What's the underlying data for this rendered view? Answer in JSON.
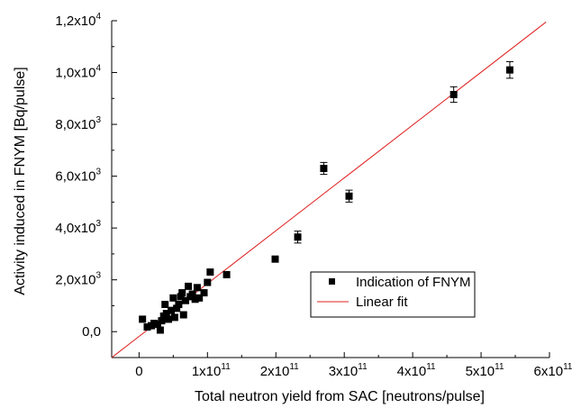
{
  "chart_data": {
    "type": "scatter",
    "xlabel": "Total neutron yield from SAC [neutrons/pulse]",
    "ylabel": "Activity induced in FNYM [Bq/pulse]",
    "xlim": [
      -40000000000.0,
      600000000000.0
    ],
    "ylim": [
      -1000,
      12000
    ],
    "x_ticks": [
      {
        "value": 0,
        "mantissa": "0",
        "exponent": ""
      },
      {
        "value": 100000000000.0,
        "mantissa": "1x10",
        "exponent": "11"
      },
      {
        "value": 200000000000.0,
        "mantissa": "2x10",
        "exponent": "11"
      },
      {
        "value": 300000000000.0,
        "mantissa": "3x10",
        "exponent": "11"
      },
      {
        "value": 400000000000.0,
        "mantissa": "4x10",
        "exponent": "11"
      },
      {
        "value": 500000000000.0,
        "mantissa": "5x10",
        "exponent": "11"
      },
      {
        "value": 600000000000.0,
        "mantissa": "6x10",
        "exponent": "11"
      }
    ],
    "y_ticks": [
      {
        "value": 0,
        "mantissa": "0,0",
        "exponent": ""
      },
      {
        "value": 2000,
        "mantissa": "2,0x10",
        "exponent": "3"
      },
      {
        "value": 4000,
        "mantissa": "4,0x10",
        "exponent": "3"
      },
      {
        "value": 6000,
        "mantissa": "6,0x10",
        "exponent": "3"
      },
      {
        "value": 8000,
        "mantissa": "8,0x10",
        "exponent": "3"
      },
      {
        "value": 10000,
        "mantissa": "1,0x10",
        "exponent": "4"
      },
      {
        "value": 12000,
        "mantissa": "1,2x10",
        "exponent": "4"
      }
    ],
    "grid": false,
    "legend_position": "lower-right",
    "series": [
      {
        "name": "Indication of FNYM",
        "type": "scatter",
        "marker": "square",
        "color": "#000000",
        "points": [
          {
            "x": 5000000000.0,
            "y": 480
          },
          {
            "x": 12000000000.0,
            "y": 180
          },
          {
            "x": 18000000000.0,
            "y": 230
          },
          {
            "x": 22000000000.0,
            "y": 320
          },
          {
            "x": 27000000000.0,
            "y": 280
          },
          {
            "x": 31000000000.0,
            "y": 60
          },
          {
            "x": 33000000000.0,
            "y": 420
          },
          {
            "x": 36000000000.0,
            "y": 600
          },
          {
            "x": 38000000000.0,
            "y": 1050
          },
          {
            "x": 40000000000.0,
            "y": 700
          },
          {
            "x": 43000000000.0,
            "y": 480
          },
          {
            "x": 47000000000.0,
            "y": 820
          },
          {
            "x": 50000000000.0,
            "y": 1300
          },
          {
            "x": 52000000000.0,
            "y": 550
          },
          {
            "x": 55000000000.0,
            "y": 900
          },
          {
            "x": 58000000000.0,
            "y": 1050
          },
          {
            "x": 61000000000.0,
            "y": 1350
          },
          {
            "x": 63000000000.0,
            "y": 1500
          },
          {
            "x": 65000000000.0,
            "y": 650
          },
          {
            "x": 68000000000.0,
            "y": 1200
          },
          {
            "x": 72000000000.0,
            "y": 1750
          },
          {
            "x": 75000000000.0,
            "y": 1350
          },
          {
            "x": 78000000000.0,
            "y": 1450
          },
          {
            "x": 82000000000.0,
            "y": 1250
          },
          {
            "x": 85000000000.0,
            "y": 1700
          },
          {
            "x": 88000000000.0,
            "y": 1300
          },
          {
            "x": 95000000000.0,
            "y": 1500
          },
          {
            "x": 100000000000.0,
            "y": 1900
          },
          {
            "x": 104000000000.0,
            "y": 2300
          },
          {
            "x": 128000000000.0,
            "y": 2200
          },
          {
            "x": 199000000000.0,
            "y": 2800
          },
          {
            "x": 232000000000.0,
            "y": 3650,
            "err": 230
          },
          {
            "x": 270000000000.0,
            "y": 6300,
            "err": 230
          },
          {
            "x": 307000000000.0,
            "y": 5230,
            "err": 230
          },
          {
            "x": 460000000000.0,
            "y": 9150,
            "err": 300
          },
          {
            "x": 542000000000.0,
            "y": 10100,
            "err": 320
          }
        ]
      },
      {
        "name": "Linear fit",
        "type": "line",
        "color": "#e02020",
        "line": [
          {
            "x": -40000000000.0,
            "y": -1000
          },
          {
            "x": 595000000000.0,
            "y": 11950
          }
        ]
      }
    ]
  }
}
